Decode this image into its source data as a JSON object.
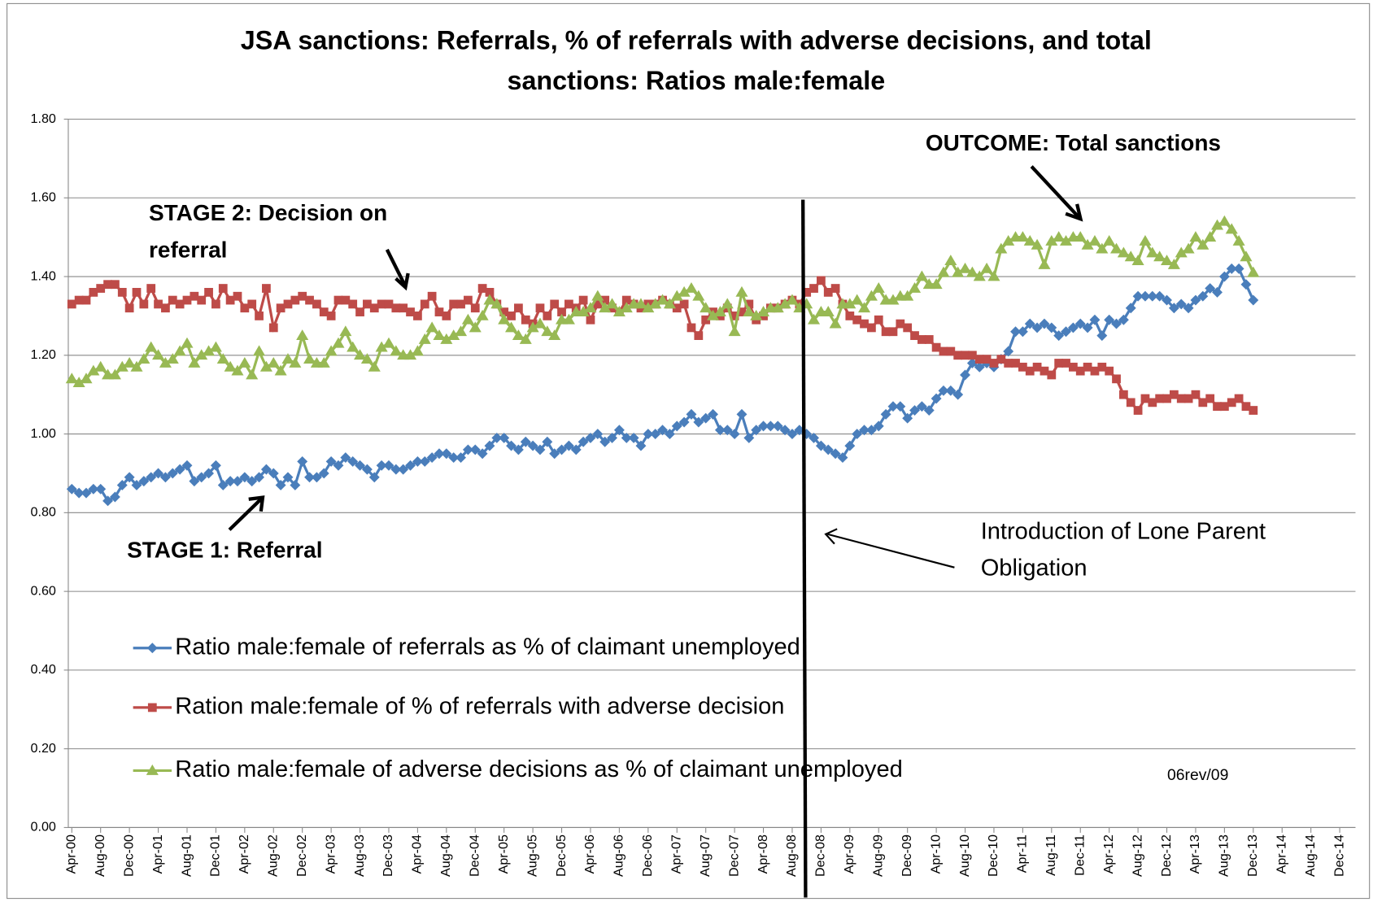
{
  "chart_data": {
    "type": "line",
    "title": [
      "JSA sanctions: Referrals, % of referrals with adverse decisions, and total",
      "sanctions: Ratios male:female"
    ],
    "categories": [
      "Apr-00",
      null,
      null,
      null,
      "Aug-00",
      null,
      null,
      null,
      "Dec-00",
      null,
      null,
      null,
      "Apr-01",
      null,
      null,
      null,
      "Aug-01",
      null,
      null,
      null,
      "Dec-01",
      null,
      null,
      null,
      "Apr-02",
      null,
      null,
      null,
      "Aug-02",
      null,
      null,
      null,
      "Dec-02",
      null,
      null,
      null,
      "Apr-03",
      null,
      null,
      null,
      "Aug-03",
      null,
      null,
      null,
      "Dec-03",
      null,
      null,
      null,
      "Apr-04",
      null,
      null,
      null,
      "Aug-04",
      null,
      null,
      null,
      "Dec-04",
      null,
      null,
      null,
      "Apr-05",
      null,
      null,
      null,
      "Aug-05",
      null,
      null,
      null,
      "Dec-05",
      null,
      null,
      null,
      "Apr-06",
      null,
      null,
      null,
      "Aug-06",
      null,
      null,
      null,
      "Dec-06",
      null,
      null,
      null,
      "Apr-07",
      null,
      null,
      null,
      "Aug-07",
      null,
      null,
      null,
      "Dec-07",
      null,
      null,
      null,
      "Apr-08",
      null,
      null,
      null,
      "Aug-08",
      null,
      null,
      null,
      "Dec-08",
      null,
      null,
      null,
      "Apr-09",
      null,
      null,
      null,
      "Aug-09",
      null,
      null,
      null,
      "Dec-09",
      null,
      null,
      null,
      "Apr-10",
      null,
      null,
      null,
      "Aug-10",
      null,
      null,
      null,
      "Dec-10",
      null,
      null,
      null,
      "Apr-11",
      null,
      null,
      null,
      "Aug-11",
      null,
      null,
      null,
      "Dec-11",
      null,
      null,
      null,
      "Apr-12",
      null,
      null,
      null,
      "Aug-12",
      null,
      null,
      null,
      "Dec-12",
      null,
      null,
      null,
      "Apr-13",
      null,
      null,
      null,
      "Aug-13",
      null,
      null,
      null,
      "Dec-13",
      null,
      null,
      null,
      "Apr-14",
      null,
      null,
      null,
      "Aug-14",
      null,
      null,
      null,
      "Dec-14"
    ],
    "series": [
      {
        "name": "Ratio male:female of referrals as % of claimant unemployed",
        "color": "#4a7ebb",
        "marker": "diamond",
        "values": [
          0.86,
          0.85,
          0.85,
          0.86,
          0.86,
          0.83,
          0.84,
          0.87,
          0.89,
          0.87,
          0.88,
          0.89,
          0.9,
          0.89,
          0.9,
          0.91,
          0.92,
          0.88,
          0.89,
          0.9,
          0.92,
          0.87,
          0.88,
          0.88,
          0.89,
          0.88,
          0.89,
          0.91,
          0.9,
          0.87,
          0.89,
          0.87,
          0.93,
          0.89,
          0.89,
          0.9,
          0.93,
          0.92,
          0.94,
          0.93,
          0.92,
          0.91,
          0.89,
          0.92,
          0.92,
          0.91,
          0.91,
          0.92,
          0.93,
          0.93,
          0.94,
          0.95,
          0.95,
          0.94,
          0.94,
          0.96,
          0.96,
          0.95,
          0.97,
          0.99,
          0.99,
          0.97,
          0.96,
          0.98,
          0.97,
          0.96,
          0.98,
          0.95,
          0.96,
          0.97,
          0.96,
          0.98,
          0.99,
          1.0,
          0.98,
          0.99,
          1.01,
          0.99,
          0.99,
          0.97,
          1.0,
          1.0,
          1.01,
          1.0,
          1.02,
          1.03,
          1.05,
          1.03,
          1.04,
          1.05,
          1.01,
          1.01,
          1.0,
          1.05,
          0.99,
          1.01,
          1.02,
          1.02,
          1.02,
          1.01,
          1.0,
          1.01,
          1.0,
          0.99,
          0.97,
          0.96,
          0.95,
          0.94,
          0.97,
          1.0,
          1.01,
          1.01,
          1.02,
          1.05,
          1.07,
          1.07,
          1.04,
          1.06,
          1.07,
          1.06,
          1.09,
          1.11,
          1.11,
          1.1,
          1.15,
          1.18,
          1.17,
          1.18,
          1.17,
          1.19,
          1.21,
          1.26,
          1.26,
          1.28,
          1.27,
          1.28,
          1.27,
          1.25,
          1.26,
          1.27,
          1.28,
          1.27,
          1.29,
          1.25,
          1.29,
          1.28,
          1.29,
          1.32,
          1.35,
          1.35,
          1.35,
          1.35,
          1.34,
          1.32,
          1.33,
          1.32,
          1.34,
          1.35,
          1.37,
          1.36,
          1.4,
          1.42,
          1.42,
          1.38,
          1.34,
          null,
          null,
          null,
          null,
          null,
          null,
          null,
          null,
          null,
          null,
          null,
          null
        ]
      },
      {
        "name": "Ration male:female of % of referrals with adverse decision",
        "color": "#be4b48",
        "marker": "square",
        "values": [
          1.33,
          1.34,
          1.34,
          1.36,
          1.37,
          1.38,
          1.38,
          1.36,
          1.32,
          1.36,
          1.33,
          1.37,
          1.33,
          1.32,
          1.34,
          1.33,
          1.34,
          1.35,
          1.34,
          1.36,
          1.33,
          1.37,
          1.34,
          1.35,
          1.32,
          1.33,
          1.3,
          1.37,
          1.27,
          1.32,
          1.33,
          1.34,
          1.35,
          1.34,
          1.33,
          1.31,
          1.3,
          1.34,
          1.34,
          1.33,
          1.31,
          1.33,
          1.32,
          1.33,
          1.33,
          1.32,
          1.32,
          1.31,
          1.3,
          1.33,
          1.35,
          1.31,
          1.3,
          1.33,
          1.33,
          1.34,
          1.32,
          1.37,
          1.36,
          1.33,
          1.31,
          1.3,
          1.32,
          1.29,
          1.28,
          1.32,
          1.3,
          1.33,
          1.31,
          1.33,
          1.32,
          1.34,
          1.29,
          1.33,
          1.34,
          1.32,
          1.31,
          1.34,
          1.33,
          1.32,
          1.33,
          1.33,
          1.34,
          1.33,
          1.32,
          1.33,
          1.27,
          1.25,
          1.29,
          1.31,
          1.3,
          1.32,
          1.3,
          1.31,
          1.33,
          1.29,
          1.3,
          1.32,
          1.32,
          1.33,
          1.34,
          1.33,
          1.36,
          1.37,
          1.39,
          1.36,
          1.37,
          1.33,
          1.3,
          1.29,
          1.28,
          1.27,
          1.29,
          1.26,
          1.26,
          1.28,
          1.27,
          1.25,
          1.24,
          1.24,
          1.22,
          1.21,
          1.21,
          1.2,
          1.2,
          1.2,
          1.19,
          1.19,
          1.18,
          1.19,
          1.18,
          1.18,
          1.17,
          1.16,
          1.17,
          1.16,
          1.15,
          1.18,
          1.18,
          1.17,
          1.16,
          1.17,
          1.16,
          1.17,
          1.16,
          1.14,
          1.1,
          1.08,
          1.06,
          1.09,
          1.08,
          1.09,
          1.09,
          1.1,
          1.09,
          1.09,
          1.1,
          1.08,
          1.09,
          1.07,
          1.07,
          1.08,
          1.09,
          1.07,
          1.06,
          null,
          null,
          null,
          null,
          null,
          null,
          null,
          null,
          null,
          null,
          null,
          null
        ]
      },
      {
        "name": "Ratio male:female of adverse decisions as % of claimant unemployed",
        "color": "#98b954",
        "marker": "triangle",
        "values": [
          1.14,
          1.13,
          1.14,
          1.16,
          1.17,
          1.15,
          1.15,
          1.17,
          1.18,
          1.17,
          1.19,
          1.22,
          1.2,
          1.18,
          1.19,
          1.21,
          1.23,
          1.18,
          1.2,
          1.21,
          1.22,
          1.19,
          1.17,
          1.16,
          1.18,
          1.15,
          1.21,
          1.17,
          1.18,
          1.16,
          1.19,
          1.18,
          1.25,
          1.19,
          1.18,
          1.18,
          1.21,
          1.23,
          1.26,
          1.22,
          1.2,
          1.19,
          1.17,
          1.22,
          1.23,
          1.21,
          1.2,
          1.2,
          1.21,
          1.24,
          1.27,
          1.25,
          1.24,
          1.25,
          1.26,
          1.29,
          1.27,
          1.3,
          1.34,
          1.33,
          1.29,
          1.27,
          1.25,
          1.24,
          1.27,
          1.28,
          1.26,
          1.25,
          1.29,
          1.29,
          1.31,
          1.31,
          1.32,
          1.35,
          1.32,
          1.33,
          1.31,
          1.32,
          1.33,
          1.33,
          1.32,
          1.33,
          1.34,
          1.33,
          1.35,
          1.36,
          1.37,
          1.35,
          1.32,
          1.3,
          1.31,
          1.33,
          1.26,
          1.36,
          1.31,
          1.3,
          1.31,
          1.32,
          1.32,
          1.33,
          1.34,
          1.32,
          1.33,
          1.29,
          1.31,
          1.31,
          1.28,
          1.33,
          1.33,
          1.34,
          1.32,
          1.35,
          1.37,
          1.34,
          1.34,
          1.35,
          1.35,
          1.37,
          1.4,
          1.38,
          1.38,
          1.41,
          1.44,
          1.41,
          1.42,
          1.41,
          1.4,
          1.42,
          1.4,
          1.47,
          1.49,
          1.5,
          1.5,
          1.49,
          1.48,
          1.43,
          1.49,
          1.5,
          1.49,
          1.5,
          1.5,
          1.48,
          1.49,
          1.47,
          1.49,
          1.47,
          1.46,
          1.45,
          1.44,
          1.49,
          1.46,
          1.45,
          1.44,
          1.43,
          1.46,
          1.47,
          1.5,
          1.48,
          1.5,
          1.53,
          1.54,
          1.52,
          1.49,
          1.45,
          1.41,
          null,
          null,
          null,
          null,
          null,
          null,
          null,
          null,
          null,
          null,
          null,
          null
        ]
      }
    ],
    "ylim": [
      0,
      1.8
    ],
    "yticks": [
      {
        "value": 0,
        "label": "0.00"
      },
      {
        "value": 0.2,
        "label": "0.20"
      },
      {
        "value": 0.4,
        "label": "0.40"
      },
      {
        "value": 0.6,
        "label": "0.60"
      },
      {
        "value": 0.8,
        "label": "0.80"
      },
      {
        "value": 1.0,
        "label": "1.00"
      },
      {
        "value": 1.2,
        "label": "1.20"
      },
      {
        "value": 1.4,
        "label": "1.40"
      },
      {
        "value": 1.6,
        "label": "1.60"
      },
      {
        "value": 1.8,
        "label": "1.80"
      }
    ],
    "grid": true,
    "legend": "lower left",
    "annotations": {
      "stage2": [
        "STAGE 2: Decision on",
        "referral"
      ],
      "outcome": [
        "OUTCOME: Total sanctions"
      ],
      "stage1": [
        "STAGE 1: Referral"
      ],
      "lpo": [
        "Introduction of Lone Parent",
        "Obligation"
      ],
      "code": [
        "06rev/09"
      ]
    }
  }
}
